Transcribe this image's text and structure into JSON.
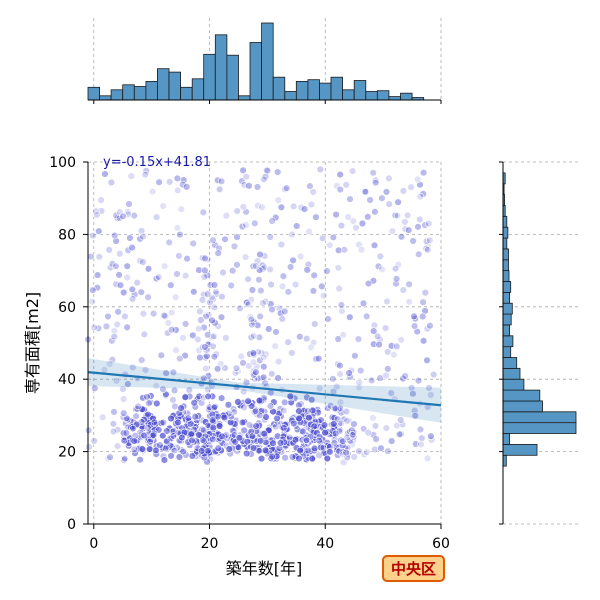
{
  "chart_data": {
    "type": "scatter",
    "title": "",
    "xlabel": "築年数[年]",
    "ylabel": "専有面積[m2]",
    "xlim": [
      -1,
      60
    ],
    "ylim": [
      0,
      100
    ],
    "xticks": [
      0,
      20,
      40,
      60
    ],
    "yticks": [
      0,
      20,
      40,
      60,
      80,
      100
    ],
    "grid": true,
    "regression": {
      "label": "y=-0.15x+41.81",
      "slope": -0.15,
      "intercept": 41.81,
      "color": "#1f77b4"
    },
    "point_color": "#4b4bd0",
    "badge": "中央区",
    "x_histogram": {
      "bin_edges": [
        -1,
        1,
        3,
        5,
        7,
        9,
        11,
        13,
        15,
        17,
        19,
        21,
        23,
        25,
        27,
        29,
        31,
        33,
        35,
        37,
        39,
        41,
        43,
        45,
        47,
        49,
        51,
        53,
        55,
        57
      ],
      "counts": [
        15,
        5,
        12,
        18,
        16,
        22,
        37,
        33,
        15,
        25,
        54,
        77,
        53,
        5,
        68,
        91,
        27,
        10,
        22,
        24,
        20,
        27,
        12,
        23,
        10,
        11,
        4,
        8,
        3,
        3
      ]
    },
    "y_histogram": {
      "bin_edges": [
        16,
        19,
        22,
        25,
        28,
        31,
        34,
        37,
        40,
        43,
        46,
        49,
        52,
        55,
        58,
        61,
        64,
        67,
        70,
        73,
        76,
        79,
        82,
        85,
        88,
        91,
        94,
        97
      ],
      "counts": [
        6,
        62,
        12,
        133,
        133,
        72,
        67,
        38,
        31,
        25,
        14,
        18,
        12,
        15,
        17,
        12,
        14,
        11,
        10,
        10,
        7,
        9,
        7,
        4,
        3,
        2,
        4,
        3
      ]
    },
    "points": {
      "dense_cluster": {
        "x_range": [
          5,
          45
        ],
        "y_range": [
          19,
          35
        ]
      },
      "spread": {
        "x_range": [
          -1,
          60
        ],
        "y_range": [
          18,
          98
        ]
      }
    }
  }
}
